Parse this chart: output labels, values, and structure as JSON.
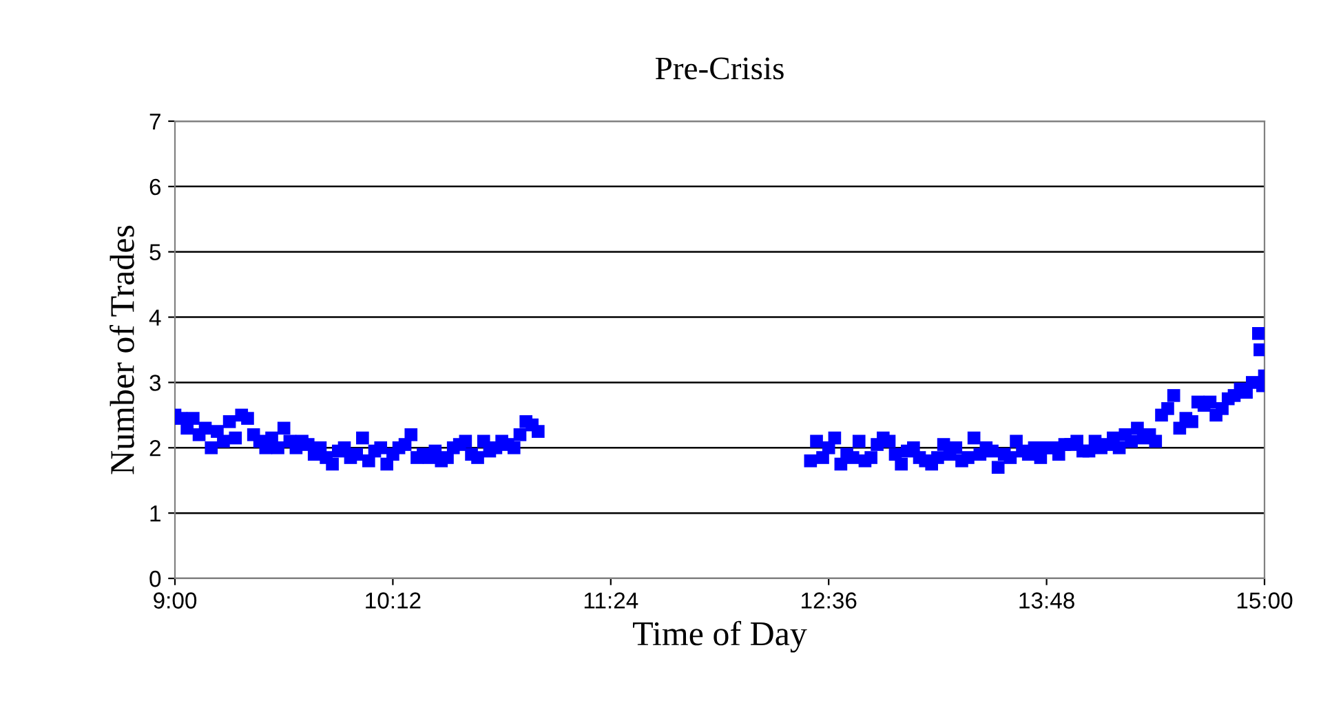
{
  "chart_data": {
    "type": "scatter",
    "title": "Pre-Crisis",
    "xlabel": "Time of Day",
    "ylabel": "Number of Trades",
    "marker": "square",
    "grid": "y",
    "legend": false,
    "xlim": [
      9,
      15
    ],
    "xticks": [
      {
        "value": 9,
        "label": "9:00"
      },
      {
        "value": 10.2,
        "label": "10:12"
      },
      {
        "value": 11.4,
        "label": "11:24"
      },
      {
        "value": 12.6,
        "label": "12:36"
      },
      {
        "value": 13.8,
        "label": "13:48"
      },
      {
        "value": 15,
        "label": "15:00"
      }
    ],
    "ylim": [
      0,
      7
    ],
    "yticks": [
      0,
      1,
      2,
      3,
      4,
      5,
      6,
      7
    ],
    "series": [
      {
        "color": "#0000ff",
        "x": [
          9.0,
          9.033,
          9.067,
          9.1,
          9.133,
          9.167,
          9.2,
          9.233,
          9.267,
          9.3,
          9.333,
          9.367,
          9.4,
          9.433,
          9.467,
          9.5,
          9.533,
          9.567,
          9.6,
          9.633,
          9.667,
          9.7,
          9.733,
          9.767,
          9.8,
          9.833,
          9.867,
          9.9,
          9.933,
          9.967,
          10.0,
          10.033,
          10.067,
          10.1,
          10.133,
          10.167,
          10.2,
          10.233,
          10.267,
          10.3,
          10.333,
          10.367,
          10.4,
          10.433,
          10.467,
          10.5,
          10.533,
          10.567,
          10.6,
          10.633,
          10.667,
          10.7,
          10.733,
          10.767,
          10.8,
          10.833,
          10.867,
          10.9,
          10.933,
          10.967,
          11.0,
          12.5,
          12.533,
          12.567,
          12.6,
          12.633,
          12.667,
          12.7,
          12.733,
          12.767,
          12.8,
          12.833,
          12.867,
          12.9,
          12.933,
          12.967,
          13.0,
          13.033,
          13.067,
          13.1,
          13.133,
          13.167,
          13.2,
          13.233,
          13.267,
          13.3,
          13.333,
          13.367,
          13.4,
          13.433,
          13.467,
          13.5,
          13.533,
          13.567,
          13.6,
          13.633,
          13.667,
          13.7,
          13.733,
          13.767,
          13.8,
          13.833,
          13.867,
          13.9,
          13.933,
          13.967,
          14.0,
          14.033,
          14.067,
          14.1,
          14.133,
          14.167,
          14.2,
          14.233,
          14.267,
          14.3,
          14.333,
          14.367,
          14.4,
          14.433,
          14.467,
          14.5,
          14.533,
          14.567,
          14.6,
          14.633,
          14.667,
          14.7,
          14.733,
          14.767,
          14.8,
          14.833,
          14.867,
          14.9,
          14.933,
          14.967,
          14.975,
          14.99,
          15.0
        ],
        "values": [
          2.5,
          2.45,
          2.3,
          2.45,
          2.2,
          2.3,
          2.0,
          2.25,
          2.1,
          2.4,
          2.15,
          2.5,
          2.45,
          2.2,
          2.1,
          2.0,
          2.15,
          2.0,
          2.3,
          2.1,
          2.0,
          2.1,
          2.05,
          1.9,
          2.0,
          1.85,
          1.75,
          1.95,
          2.0,
          1.85,
          1.9,
          2.15,
          1.8,
          1.95,
          2.0,
          1.75,
          1.9,
          2.0,
          2.05,
          2.2,
          1.85,
          1.9,
          1.85,
          1.95,
          1.8,
          1.85,
          2.0,
          2.05,
          2.1,
          1.9,
          1.85,
          2.1,
          1.95,
          2.0,
          2.1,
          2.05,
          2.0,
          2.2,
          2.4,
          2.35,
          2.25,
          1.8,
          2.1,
          1.85,
          2.0,
          2.15,
          1.75,
          1.9,
          1.85,
          2.1,
          1.8,
          1.85,
          2.05,
          2.15,
          2.1,
          1.9,
          1.75,
          1.95,
          2.0,
          1.85,
          1.8,
          1.75,
          1.85,
          2.05,
          1.9,
          2.0,
          1.8,
          1.85,
          2.15,
          1.9,
          2.0,
          1.95,
          1.7,
          1.9,
          1.85,
          2.1,
          1.95,
          1.9,
          2.0,
          1.85,
          2.0,
          2.0,
          1.9,
          2.05,
          2.05,
          2.1,
          1.95,
          1.95,
          2.1,
          2.0,
          2.05,
          2.15,
          2.0,
          2.2,
          2.1,
          2.3,
          2.15,
          2.2,
          2.1,
          2.5,
          2.6,
          2.8,
          2.3,
          2.45,
          2.4,
          2.7,
          2.65,
          2.7,
          2.5,
          2.6,
          2.75,
          2.8,
          2.9,
          2.85,
          3.0,
          3.75,
          3.5,
          2.95,
          3.1
        ]
      }
    ]
  }
}
